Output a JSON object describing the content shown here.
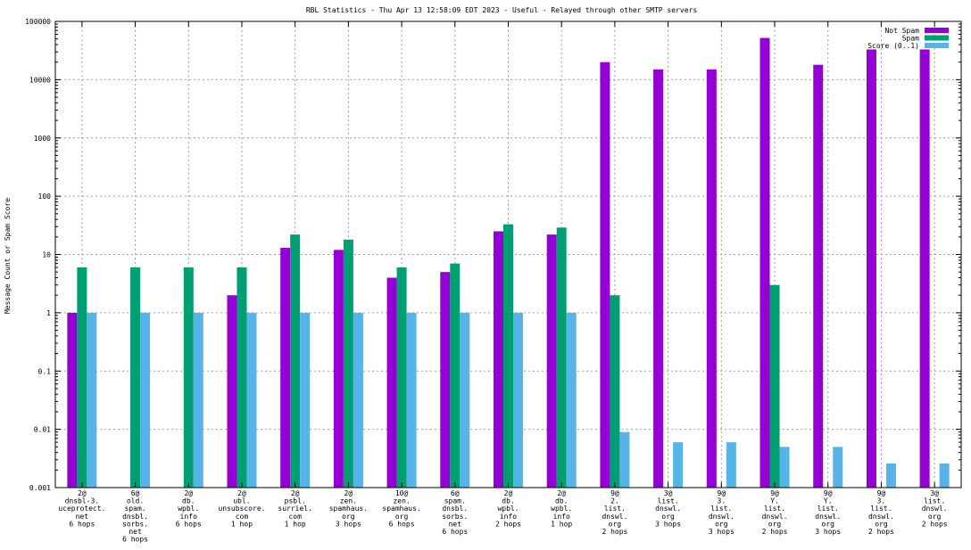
{
  "chart_data": {
    "type": "bar",
    "title": "RBL Statistics - Thu Apr 13 12:58:09 EDT 2023 - Useful - Relayed through other SMTP servers",
    "ylabel": "Message Count or Spam Score",
    "xlabel": "",
    "yscale": "log",
    "ylim": [
      0.001,
      100000
    ],
    "yticks": [
      "0.001",
      "0.01",
      "0.1",
      "1",
      "10",
      "100",
      "1000",
      "10000",
      "100000"
    ],
    "grid": true,
    "legend_position": "top-right",
    "categories": [
      [
        "2@",
        "dnsbl-3.",
        "uceprotect.",
        "net",
        "6 hops"
      ],
      [
        "6@",
        "old.",
        "spam.",
        "dnsbl.",
        "sorbs.",
        "net",
        "6 hops"
      ],
      [
        "2@",
        "db.",
        "wpbl.",
        "info",
        "6 hops"
      ],
      [
        "2@",
        "ubl.",
        "unsubscore.",
        "com",
        "1 hop"
      ],
      [
        "2@",
        "psbl.",
        "surriel.",
        "com",
        "1 hop"
      ],
      [
        "2@",
        "zen.",
        "spamhaus.",
        "org",
        "3 hops"
      ],
      [
        "10@",
        "zen.",
        "spamhaus.",
        "org",
        "6 hops"
      ],
      [
        "6@",
        "spam.",
        "dnsbl.",
        "sorbs.",
        "net",
        "6 hops"
      ],
      [
        "2@",
        "db.",
        "wpbl.",
        "info",
        "2 hops"
      ],
      [
        "2@",
        "db.",
        "wpbl.",
        "info",
        "1 hop"
      ],
      [
        "9@",
        "2.",
        "list.",
        "dnswl.",
        "org",
        "2 hops"
      ],
      [
        "3@",
        "list.",
        "dnswl.",
        "org",
        "3 hops"
      ],
      [
        "9@",
        "3.",
        "list.",
        "dnswl.",
        "org",
        "3 hops"
      ],
      [
        "9@",
        "Y.",
        "list.",
        "dnswl.",
        "org",
        "2 hops"
      ],
      [
        "9@",
        "Y.",
        "list.",
        "dnswl.",
        "org",
        "3 hops"
      ],
      [
        "9@",
        "3.",
        "list.",
        "dnswl.",
        "org",
        "2 hops"
      ],
      [
        "3@",
        "list.",
        "dnswl.",
        "org",
        "2 hops"
      ]
    ],
    "series": [
      {
        "name": "Not Spam",
        "color": "#9400d3",
        "values": [
          1,
          null,
          null,
          2,
          13,
          12,
          4,
          5,
          25,
          22,
          20000,
          15000,
          15000,
          52000,
          18000,
          33000,
          33000
        ]
      },
      {
        "name": "Spam",
        "color": "#009e73",
        "values": [
          6,
          6,
          6,
          6,
          22,
          18,
          6,
          7,
          33,
          29,
          2,
          null,
          null,
          3,
          null,
          null,
          null
        ]
      },
      {
        "name": "Score (0..1)",
        "color": "#56b4e9",
        "values": [
          1,
          1,
          1,
          1,
          1,
          1,
          1,
          1,
          1,
          1,
          0.009,
          0.006,
          0.006,
          0.005,
          0.005,
          0.0026,
          0.0026
        ]
      }
    ]
  }
}
